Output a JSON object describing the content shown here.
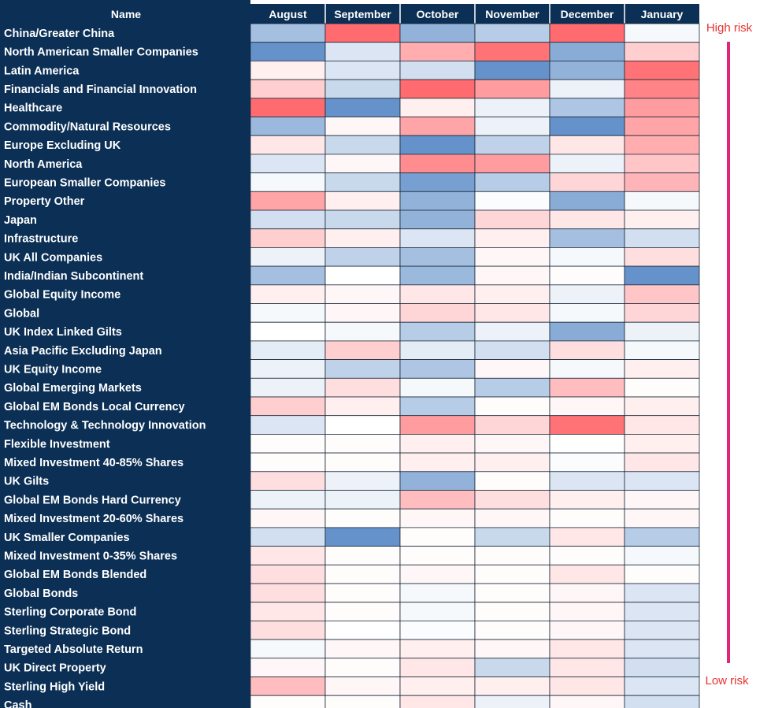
{
  "chart_data": {
    "type": "heatmap",
    "title": "",
    "corner_header": "Name",
    "columns": [
      "August",
      "September",
      "October",
      "November",
      "December",
      "January"
    ],
    "rows": [
      {
        "name": "China/Greater China",
        "values": [
          -0.5,
          0.9,
          -0.6,
          -0.4,
          0.9,
          -0.05
        ]
      },
      {
        "name": "North American Smaller Companies",
        "values": [
          -0.85,
          -0.2,
          0.5,
          0.85,
          -0.65,
          0.3
        ]
      },
      {
        "name": "Latin America",
        "values": [
          0.1,
          -0.2,
          -0.25,
          -0.85,
          -0.6,
          0.85
        ]
      },
      {
        "name": "Financials and Financial Innovation",
        "values": [
          0.3,
          -0.3,
          0.9,
          0.6,
          -0.1,
          0.75
        ]
      },
      {
        "name": "Healthcare",
        "values": [
          0.9,
          -0.85,
          0.1,
          -0.1,
          -0.45,
          0.6
        ]
      },
      {
        "name": "Commodity/Natural Resources",
        "values": [
          -0.55,
          0.05,
          0.55,
          -0.1,
          -0.85,
          0.55
        ]
      },
      {
        "name": "Europe Excluding UK",
        "values": [
          0.15,
          -0.3,
          -0.85,
          -0.35,
          0.15,
          0.5
        ]
      },
      {
        "name": "North America",
        "values": [
          -0.2,
          0.05,
          0.7,
          0.6,
          -0.1,
          0.35
        ]
      },
      {
        "name": "European Smaller Companies",
        "values": [
          -0.05,
          -0.3,
          -0.75,
          -0.4,
          0.25,
          0.45
        ]
      },
      {
        "name": "Property Other",
        "values": [
          0.55,
          0.1,
          -0.6,
          -0.02,
          -0.65,
          -0.05
        ]
      },
      {
        "name": "Japan",
        "values": [
          -0.25,
          -0.3,
          -0.6,
          0.25,
          0.15,
          0.1
        ]
      },
      {
        "name": "Infrastructure",
        "values": [
          0.3,
          0.1,
          -0.2,
          0.1,
          -0.5,
          -0.25
        ]
      },
      {
        "name": "UK All Companies",
        "values": [
          -0.1,
          -0.35,
          -0.5,
          0.05,
          -0.05,
          0.2
        ]
      },
      {
        "name": "India/Indian Subcontinent",
        "values": [
          -0.5,
          0.0,
          -0.55,
          0.05,
          0.02,
          -0.85
        ]
      },
      {
        "name": "Global Equity Income",
        "values": [
          0.1,
          0.05,
          0.15,
          0.1,
          -0.1,
          0.35
        ]
      },
      {
        "name": "Global",
        "values": [
          -0.05,
          0.05,
          0.25,
          0.15,
          -0.05,
          0.25
        ]
      },
      {
        "name": "UK Index Linked Gilts",
        "values": [
          0.0,
          -0.05,
          -0.4,
          -0.1,
          -0.65,
          -0.1
        ]
      },
      {
        "name": "Asia Pacific Excluding Japan",
        "values": [
          -0.15,
          0.3,
          -0.15,
          -0.25,
          0.2,
          -0.05
        ]
      },
      {
        "name": "UK Equity Income",
        "values": [
          -0.1,
          -0.35,
          -0.45,
          0.05,
          -0.05,
          0.1
        ]
      },
      {
        "name": "Global Emerging Markets",
        "values": [
          -0.1,
          0.2,
          -0.05,
          -0.4,
          0.4,
          0.02
        ]
      },
      {
        "name": "Global EM Bonds Local Currency",
        "values": [
          0.3,
          0.1,
          -0.4,
          0.02,
          0.05,
          0.1
        ]
      },
      {
        "name": "Technology & Technology Innovation",
        "values": [
          -0.2,
          0.0,
          0.6,
          0.25,
          0.85,
          0.15
        ]
      },
      {
        "name": "Flexible Investment",
        "values": [
          0.02,
          0.02,
          0.1,
          0.05,
          0.0,
          0.1
        ]
      },
      {
        "name": "Mixed Investment 40-85% Shares",
        "values": [
          0.02,
          0.02,
          0.1,
          0.1,
          -0.02,
          0.15
        ]
      },
      {
        "name": "UK Gilts",
        "values": [
          0.2,
          -0.1,
          -0.6,
          0.02,
          -0.2,
          -0.2
        ]
      },
      {
        "name": "Global EM Bonds Hard Currency",
        "values": [
          -0.1,
          -0.1,
          0.4,
          0.2,
          0.1,
          0.05
        ]
      },
      {
        "name": "Mixed Investment 20-60% Shares",
        "values": [
          0.05,
          0.02,
          0.05,
          0.05,
          0.02,
          0.05
        ]
      },
      {
        "name": "UK Smaller Companies",
        "values": [
          -0.25,
          -0.85,
          0.02,
          -0.3,
          0.15,
          -0.4
        ]
      },
      {
        "name": "Mixed Investment 0-35% Shares",
        "values": [
          0.15,
          0.02,
          0.02,
          0.02,
          0.02,
          -0.05
        ]
      },
      {
        "name": "Global EM Bonds Blended",
        "values": [
          0.2,
          0.02,
          0.05,
          0.02,
          0.15,
          0.02
        ]
      },
      {
        "name": "Global Bonds",
        "values": [
          0.2,
          0.02,
          -0.05,
          0.02,
          0.05,
          -0.2
        ]
      },
      {
        "name": "Sterling Corporate Bond",
        "values": [
          0.15,
          0.02,
          -0.05,
          0.02,
          0.05,
          -0.2
        ]
      },
      {
        "name": "Sterling Strategic Bond",
        "values": [
          0.2,
          0.0,
          -0.02,
          0.02,
          0.05,
          -0.2
        ]
      },
      {
        "name": "Targeted Absolute Return",
        "values": [
          -0.05,
          0.05,
          0.1,
          0.05,
          0.15,
          -0.2
        ]
      },
      {
        "name": "UK Direct Property",
        "values": [
          0.05,
          0.02,
          0.15,
          -0.3,
          0.15,
          -0.25
        ]
      },
      {
        "name": "Sterling High Yield",
        "values": [
          0.4,
          0.05,
          0.1,
          0.1,
          0.15,
          -0.2
        ]
      },
      {
        "name": "Cash",
        "values": [
          0.02,
          0.02,
          0.15,
          -0.1,
          0.05,
          -0.25
        ]
      }
    ],
    "scale": {
      "min": -1,
      "max": 1,
      "negative_color": "#4a7fc1",
      "neutral_color": "#ffffff",
      "positive_color": "#ff5a5f"
    },
    "legend": {
      "high_label": "High risk",
      "low_label": "Low risk",
      "label_color": "#e8322f",
      "bar_color": "#e0267a"
    },
    "header_background": "#0b2f55",
    "header_text_color": "#ffffff",
    "grid": true
  }
}
